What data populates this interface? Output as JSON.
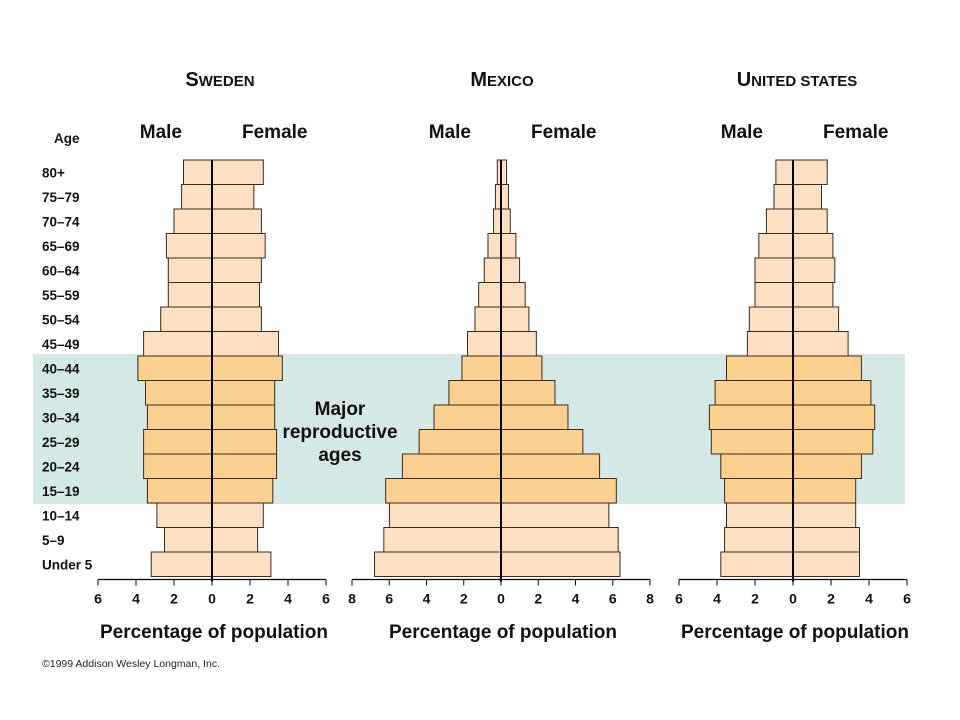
{
  "chart_data": {
    "type": "bar",
    "subtype": "population-pyramid",
    "age_axis_label": "Age",
    "age_groups": [
      "80+",
      "75–79",
      "70–74",
      "65–69",
      "60–64",
      "55–59",
      "50–54",
      "45–49",
      "40–44",
      "35–39",
      "30–34",
      "25–29",
      "20–24",
      "15–19",
      "10–14",
      "5–9",
      "Under 5"
    ],
    "highlight": {
      "label": "Major reproductive ages",
      "label_lines": [
        "Major",
        "reproductive",
        "ages"
      ],
      "from": "15–19",
      "to": "40–44",
      "color": "#d4e8e6"
    },
    "bar_colors": {
      "normal": "#fde0c4",
      "highlight": "#fcd18f",
      "edge": "#3a2a1a"
    },
    "panels": [
      {
        "country_first": "S",
        "country_rest": "WEDEN",
        "male_label": "Male",
        "female_label": "Female",
        "xlim": [
          -6,
          6
        ],
        "ticks": [
          "6",
          "4",
          "2",
          "0",
          "2",
          "4",
          "6"
        ],
        "xlabel": "Percentage of population",
        "male": [
          1.5,
          1.6,
          2.0,
          2.4,
          2.3,
          2.3,
          2.7,
          3.6,
          3.9,
          3.5,
          3.4,
          3.6,
          3.6,
          3.4,
          2.9,
          2.5,
          3.2
        ],
        "female": [
          2.7,
          2.2,
          2.6,
          2.8,
          2.6,
          2.5,
          2.6,
          3.5,
          3.7,
          3.3,
          3.3,
          3.4,
          3.4,
          3.2,
          2.7,
          2.4,
          3.1
        ]
      },
      {
        "country_first": "M",
        "country_rest": "EXICO",
        "male_label": "Male",
        "female_label": "Female",
        "xlim": [
          -8,
          8
        ],
        "ticks": [
          "8",
          "6",
          "4",
          "2",
          "0",
          "2",
          "4",
          "6",
          "8"
        ],
        "xlabel": "Percentage of population",
        "male": [
          0.2,
          0.3,
          0.4,
          0.7,
          0.9,
          1.2,
          1.4,
          1.8,
          2.1,
          2.8,
          3.6,
          4.4,
          5.3,
          6.2,
          6.0,
          6.3,
          6.8
        ],
        "female": [
          0.3,
          0.4,
          0.5,
          0.8,
          1.0,
          1.3,
          1.5,
          1.9,
          2.2,
          2.9,
          3.6,
          4.4,
          5.3,
          6.2,
          5.8,
          6.3,
          6.4
        ]
      },
      {
        "country_first": "U",
        "country_rest": "NITED STATES",
        "male_label": "Male",
        "female_label": "Female",
        "xlim": [
          -6,
          6
        ],
        "ticks": [
          "6",
          "4",
          "2",
          "0",
          "2",
          "4",
          "6"
        ],
        "xlabel": "Percentage of population",
        "male": [
          0.9,
          1.0,
          1.4,
          1.8,
          2.0,
          2.0,
          2.3,
          2.4,
          3.5,
          4.1,
          4.4,
          4.3,
          3.8,
          3.6,
          3.5,
          3.6,
          3.8
        ],
        "female": [
          1.8,
          1.5,
          1.8,
          2.1,
          2.2,
          2.1,
          2.4,
          2.9,
          3.6,
          4.1,
          4.3,
          4.2,
          3.6,
          3.3,
          3.3,
          3.5,
          3.5
        ]
      }
    ]
  },
  "credit": "©1999 Addison Wesley Longman, Inc."
}
